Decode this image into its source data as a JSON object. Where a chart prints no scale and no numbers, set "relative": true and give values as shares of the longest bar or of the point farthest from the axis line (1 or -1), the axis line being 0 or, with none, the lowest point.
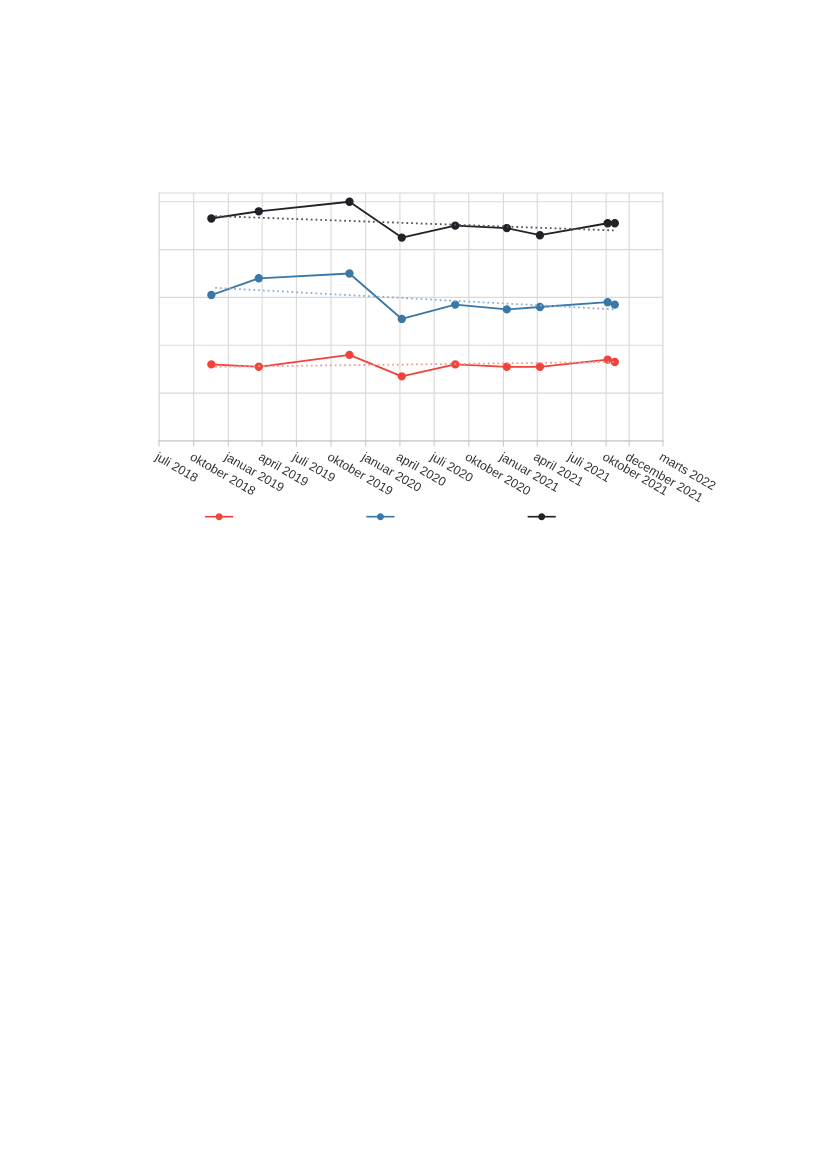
{
  "chart_data": {
    "type": "line",
    "relative": true,
    "grid": true,
    "marker": "circle",
    "line_style": "solid",
    "xlim": [
      "2018-07-01",
      "2022-03-01"
    ],
    "xticks": [
      {
        "value": "2018-07-01",
        "label": "juli 2018"
      },
      {
        "value": "2018-10-01",
        "label": "oktober 2018"
      },
      {
        "value": "2019-01-01",
        "label": "januar 2019"
      },
      {
        "value": "2019-04-01",
        "label": "april 2019"
      },
      {
        "value": "2019-07-01",
        "label": "juli 2019"
      },
      {
        "value": "2019-10-01",
        "label": "oktober 2019"
      },
      {
        "value": "2020-01-01",
        "label": "januar 2020"
      },
      {
        "value": "2020-04-01",
        "label": "april 2020"
      },
      {
        "value": "2020-07-01",
        "label": "juli 2020"
      },
      {
        "value": "2020-10-01",
        "label": "oktober 2020"
      },
      {
        "value": "2021-01-01",
        "label": "januar 2021"
      },
      {
        "value": "2021-04-01",
        "label": "april 2021"
      },
      {
        "value": "2021-07-01",
        "label": "juli 2021"
      },
      {
        "value": "2021-10-01",
        "label": "oktober 2021"
      },
      {
        "value": "2021-12-01",
        "label": "december 2021"
      },
      {
        "value": "2022-03-01",
        "label": "marts 2022"
      }
    ],
    "x": [
      "2018-11-17",
      "2019-03-23",
      "2019-11-19",
      "2020-04-06",
      "2020-08-26",
      "2021-01-10",
      "2021-04-08",
      "2021-10-05",
      "2021-10-24"
    ],
    "series": [
      {
        "color": "#f0433a",
        "values": [
          0.32,
          0.31,
          0.36,
          0.27,
          0.32,
          0.31,
          0.31,
          0.34,
          0.33
        ]
      },
      {
        "color": "#3a78a8",
        "values": [
          0.61,
          0.68,
          0.7,
          0.51,
          0.57,
          0.55,
          0.56,
          0.58,
          0.57
        ]
      },
      {
        "color": "#1f2328",
        "values": [
          0.93,
          0.96,
          1,
          0.85,
          0.9,
          0.89,
          0.86,
          0.91,
          0.91
        ]
      },
      {
        "type": "line",
        "marker": "none",
        "line_style": "dotted",
        "color": "#f39a96",
        "x": [
          "2018-11-27",
          "2021-10-21"
        ],
        "values": [
          0.31,
          0.33
        ]
      },
      {
        "type": "line",
        "marker": "none",
        "line_style": "dotted",
        "color": "#8fb0cf",
        "x": [
          "2018-11-27",
          "2021-10-21"
        ],
        "values": [
          0.64,
          0.55
        ]
      },
      {
        "type": "line",
        "marker": "none",
        "line_style": "dotted",
        "color": "#555555",
        "x": [
          "2018-11-27",
          "2021-10-21"
        ],
        "values": [
          0.94,
          0.88
        ]
      }
    ]
  }
}
